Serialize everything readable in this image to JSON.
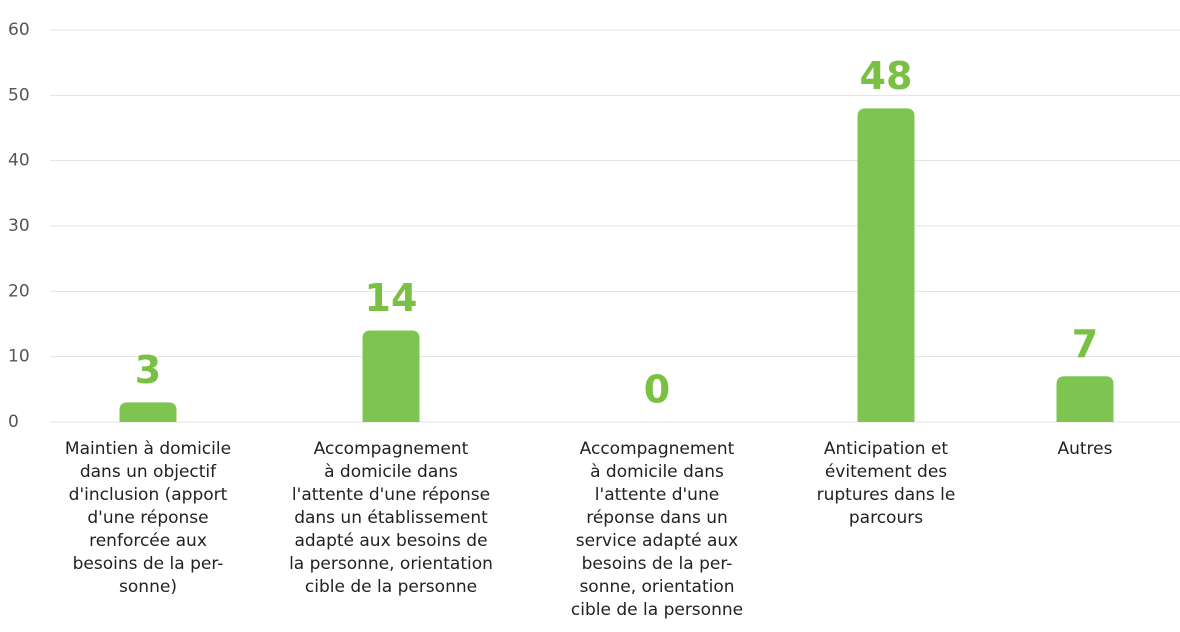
{
  "chart_data": {
    "type": "bar",
    "categories": [
      "Maintien à domicile\ndans un objectif\nd'inclusion (apport\nd'une réponse\nrenforcée aux\nbesoins de la per-\nsonne)",
      "Accompagnement\nà domicile dans\nl'attente d'une réponse\ndans un établissement\nadapté aux besoins de\nla personne, orientation\ncible de la personne",
      "Accompagnement\nà domicile dans\nl'attente d'une\nréponse dans un\nservice  adapté aux\nbesoins de la per-\nsonne, orientation\ncible de la personne",
      "Anticipation et\névitement des\nruptures dans le\nparcours",
      "Autres"
    ],
    "values": [
      3,
      14,
      0,
      48,
      7
    ],
    "color": "#7dc550",
    "label_color": "#7ac143",
    "ylim": [
      0,
      60
    ],
    "yticks": [
      0,
      10,
      20,
      30,
      40,
      50,
      60
    ],
    "grid": true
  }
}
